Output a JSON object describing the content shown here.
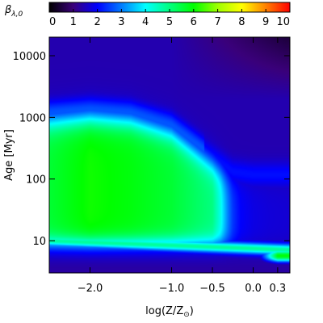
{
  "chart_data": {
    "type": "heatmap",
    "colorbar": {
      "label": "β",
      "label_sub": "λ,0",
      "ticks": [
        "0",
        "1",
        "2",
        "3",
        "4",
        "5",
        "6",
        "7",
        "8",
        "9",
        "10"
      ],
      "range": [
        0,
        10
      ],
      "colormap": [
        "#000000",
        "#3a007a",
        "#0000ff",
        "#007bff",
        "#00ffff",
        "#00ff7f",
        "#00ff00",
        "#9fff00",
        "#ffff00",
        "#ff8000",
        "#ff0000"
      ]
    },
    "x_axis": {
      "label": "log(Z/Z",
      "label_sub": "⊙",
      "label_close": ")",
      "range": [
        -2.5,
        0.45
      ],
      "ticks": [
        {
          "value": -2.0,
          "label": "−2.0"
        },
        {
          "value": -1.0,
          "label": "−1.0"
        },
        {
          "value": -0.5,
          "label": "−0.5"
        },
        {
          "value": 0.0,
          "label": "0.0"
        },
        {
          "value": 0.3,
          "label": "0.3"
        }
      ]
    },
    "y_axis": {
      "label": "Age",
      "label_unit": "[Myr]",
      "scale": "log",
      "range": [
        3,
        20000
      ],
      "ticks": [
        {
          "value": 10,
          "label": "10"
        },
        {
          "value": 100,
          "label": "100"
        },
        {
          "value": 1000,
          "label": "1000"
        },
        {
          "value": 10000,
          "label": "10000"
        }
      ]
    },
    "heatmap_model": {
      "x_knots": [
        -2.5,
        -2.0,
        -1.5,
        -1.0,
        -0.75,
        -0.5,
        -0.25,
        0.0,
        0.2,
        0.45
      ],
      "ceiling_log_age": [
        2.95,
        3.0,
        2.95,
        2.75,
        2.5,
        2.25,
        2.0,
        1.95,
        1.95,
        1.95
      ],
      "peak_value": [
        5.6,
        6.1,
        5.9,
        5.6,
        5.3,
        5.0,
        3.0,
        2.3,
        2.1,
        2.0
      ],
      "base_value_low_age": 1.4,
      "base_value_high_age": 0.5,
      "band_value": 4.8,
      "band_log_age_at_left": 1.0,
      "band_log_age_at_right": 0.85,
      "right_green_peak": 6.1
    }
  }
}
